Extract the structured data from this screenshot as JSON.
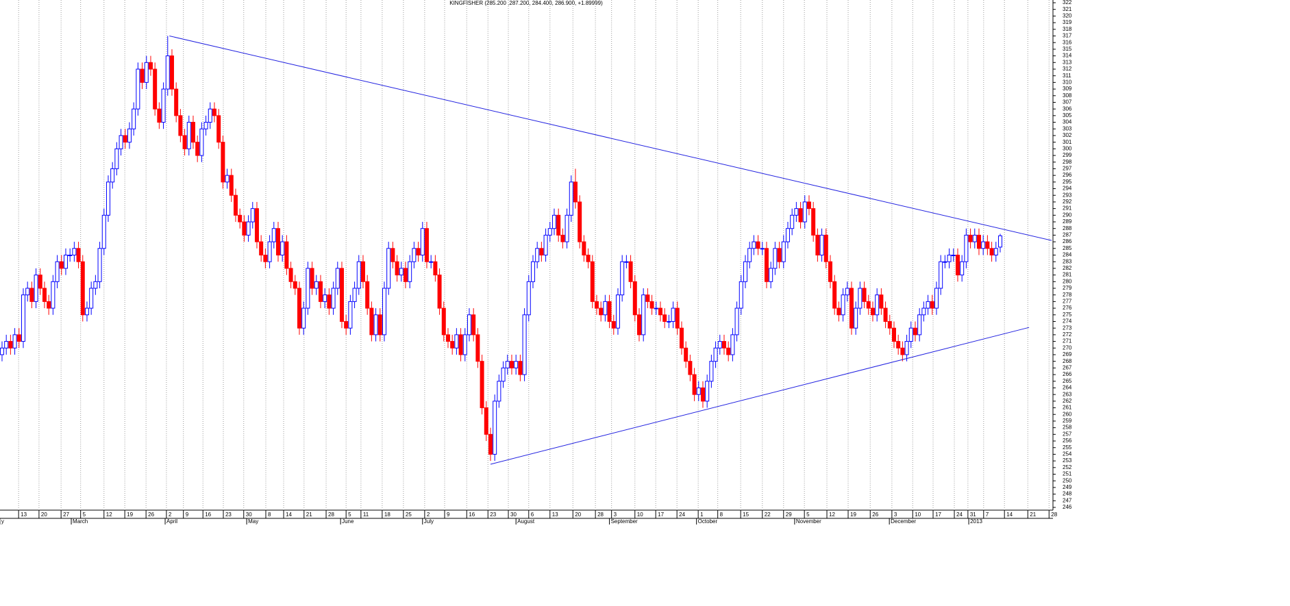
{
  "chart_data": {
    "type": "candlestick",
    "title": "KINGFISHER (285.200 ,287.200, 284.400, 286.900, +1.89999)",
    "up_color": "#0000ff",
    "down_color": "#ff0000",
    "trend_color": "#2020e0",
    "grid": true,
    "xlim": [
      -0.48,
      247.1
    ],
    "ylim": [
      246,
      322
    ],
    "open": [
      269,
      270,
      271,
      270,
      272,
      271,
      278,
      279,
      277,
      281,
      279,
      277,
      276,
      280,
      283,
      282,
      284,
      284,
      285,
      283,
      275,
      276,
      279,
      280,
      285,
      290,
      295,
      297,
      300,
      302,
      301,
      303,
      306,
      312,
      310,
      313,
      312,
      306,
      304,
      309,
      314,
      309,
      305,
      302,
      300,
      304,
      301,
      299,
      303,
      304,
      306,
      305,
      301,
      295,
      296,
      293,
      290,
      289,
      287,
      289,
      291,
      286,
      284,
      283,
      286,
      288,
      284,
      286,
      282,
      280,
      279,
      273,
      276,
      282,
      279,
      280,
      277,
      278,
      276,
      279,
      282,
      274,
      273,
      277,
      279,
      283,
      280,
      276,
      272,
      275,
      272,
      279,
      285,
      283,
      281,
      282,
      280,
      283,
      285,
      284,
      288,
      283,
      283,
      281,
      276,
      272,
      271,
      270,
      272,
      269,
      272,
      275,
      272,
      268,
      261,
      257,
      254,
      262,
      265,
      267,
      268,
      267,
      268,
      266,
      275,
      280,
      283,
      285,
      284,
      287,
      288,
      290,
      287,
      286,
      290,
      295,
      292,
      286,
      284,
      283,
      277,
      276,
      275,
      277,
      274,
      273,
      278,
      283,
      283,
      280,
      275,
      272,
      278,
      277,
      276,
      276,
      275,
      274,
      274,
      276,
      273,
      270,
      268,
      266,
      263,
      264,
      262,
      265,
      268,
      270,
      271,
      270,
      269,
      272,
      276,
      280,
      283,
      285,
      286,
      285,
      285,
      280,
      282,
      285,
      283,
      286,
      288,
      290,
      291,
      289,
      292,
      291,
      287,
      284,
      287,
      283,
      280,
      276,
      275,
      278,
      279,
      273,
      276,
      279,
      277,
      276,
      275,
      278,
      276,
      274,
      273,
      271,
      270,
      269,
      271,
      273,
      272,
      275,
      276,
      277,
      276,
      279,
      283,
      283,
      284,
      284,
      281,
      283,
      287,
      286,
      287,
      285,
      286,
      285,
      284,
      285.2
    ],
    "high": [
      271,
      272,
      272,
      273,
      273,
      279,
      280,
      280,
      282,
      282,
      280,
      278,
      281,
      284,
      284,
      285,
      285,
      286,
      286,
      284,
      277,
      280,
      281,
      286,
      291,
      296,
      298,
      301,
      303,
      303,
      304,
      307,
      313,
      313,
      314,
      314,
      313,
      307,
      310,
      317,
      315,
      310,
      306,
      303,
      305,
      305,
      302,
      304,
      305,
      307,
      307,
      306,
      302,
      297,
      297,
      294,
      291,
      290,
      290,
      292,
      292,
      287,
      285,
      287,
      289,
      289,
      287,
      287,
      283,
      281,
      280,
      277,
      283,
      283,
      281,
      281,
      279,
      279,
      280,
      283,
      283,
      275,
      278,
      280,
      284,
      284,
      281,
      277,
      276,
      276,
      280,
      286,
      286,
      284,
      283,
      283,
      284,
      286,
      286,
      289,
      289,
      284,
      284,
      282,
      277,
      273,
      272,
      273,
      273,
      273,
      276,
      276,
      273,
      269,
      262,
      258,
      263,
      266,
      268,
      269,
      269,
      269,
      269,
      276,
      281,
      284,
      286,
      286,
      288,
      289,
      291,
      291,
      288,
      291,
      296,
      297,
      293,
      287,
      285,
      284,
      278,
      277,
      278,
      278,
      275,
      279,
      284,
      284,
      284,
      281,
      276,
      279,
      279,
      278,
      277,
      277,
      276,
      275,
      277,
      277,
      274,
      271,
      269,
      267,
      265,
      265,
      266,
      269,
      271,
      272,
      272,
      271,
      273,
      277,
      281,
      284,
      286,
      287,
      287,
      286,
      286,
      283,
      286,
      286,
      287,
      289,
      291,
      292,
      292,
      293,
      293,
      292,
      288,
      288,
      288,
      284,
      281,
      277,
      279,
      280,
      280,
      277,
      280,
      280,
      278,
      277,
      279,
      279,
      277,
      275,
      274,
      272,
      271,
      272,
      274,
      274,
      276,
      277,
      278,
      278,
      280,
      284,
      284,
      285,
      285,
      285,
      284,
      288,
      288,
      288,
      288,
      287,
      287,
      286,
      286,
      287.2
    ],
    "low": [
      268,
      269,
      269,
      269,
      270,
      270,
      277,
      276,
      276,
      278,
      276,
      275,
      275,
      279,
      281,
      281,
      283,
      283,
      282,
      274,
      274,
      275,
      278,
      279,
      284,
      289,
      294,
      296,
      299,
      300,
      300,
      302,
      305,
      309,
      309,
      311,
      305,
      303,
      303,
      308,
      308,
      304,
      301,
      299,
      299,
      300,
      298,
      298,
      302,
      303,
      304,
      300,
      294,
      294,
      292,
      289,
      288,
      286,
      286,
      288,
      285,
      283,
      282,
      282,
      285,
      283,
      283,
      281,
      279,
      278,
      272,
      272,
      275,
      278,
      278,
      276,
      276,
      275,
      275,
      278,
      273,
      272,
      272,
      276,
      278,
      279,
      275,
      271,
      271,
      271,
      271,
      278,
      282,
      280,
      280,
      279,
      279,
      282,
      283,
      283,
      282,
      282,
      280,
      275,
      271,
      270,
      269,
      269,
      268,
      268,
      271,
      271,
      267,
      260,
      256,
      253,
      253,
      261,
      264,
      266,
      266,
      266,
      265,
      265,
      274,
      279,
      282,
      283,
      283,
      286,
      287,
      286,
      285,
      285,
      289,
      291,
      285,
      283,
      282,
      276,
      275,
      274,
      274,
      273,
      272,
      272,
      277,
      282,
      279,
      274,
      271,
      271,
      276,
      275,
      275,
      274,
      273,
      273,
      273,
      272,
      269,
      267,
      265,
      262,
      262,
      261,
      261,
      264,
      267,
      269,
      269,
      268,
      268,
      271,
      275,
      279,
      282,
      284,
      284,
      284,
      279,
      279,
      281,
      282,
      282,
      285,
      287,
      289,
      288,
      288,
      290,
      286,
      283,
      283,
      282,
      279,
      275,
      274,
      274,
      277,
      272,
      272,
      275,
      276,
      275,
      274,
      274,
      275,
      273,
      272,
      270,
      269,
      268,
      268,
      270,
      271,
      271,
      274,
      275,
      275,
      275,
      278,
      282,
      282,
      283,
      280,
      280,
      282,
      285,
      285,
      284,
      284,
      284,
      283,
      283,
      284.4
    ],
    "close": [
      270,
      271,
      270,
      272,
      271,
      278,
      279,
      277,
      281,
      279,
      277,
      276,
      280,
      283,
      282,
      284,
      284,
      285,
      283,
      275,
      276,
      279,
      280,
      285,
      290,
      295,
      297,
      300,
      302,
      301,
      303,
      306,
      312,
      310,
      313,
      312,
      306,
      304,
      309,
      314,
      309,
      305,
      302,
      300,
      304,
      301,
      299,
      303,
      304,
      306,
      305,
      301,
      295,
      296,
      293,
      290,
      289,
      287,
      289,
      291,
      286,
      284,
      283,
      286,
      288,
      284,
      286,
      282,
      280,
      279,
      273,
      276,
      282,
      279,
      280,
      277,
      278,
      276,
      279,
      282,
      274,
      273,
      277,
      279,
      283,
      280,
      276,
      272,
      275,
      272,
      279,
      285,
      283,
      281,
      282,
      280,
      283,
      285,
      284,
      288,
      283,
      283,
      281,
      276,
      272,
      271,
      270,
      272,
      269,
      272,
      275,
      272,
      268,
      261,
      257,
      254,
      262,
      265,
      267,
      268,
      267,
      268,
      266,
      275,
      280,
      283,
      285,
      284,
      287,
      288,
      290,
      287,
      286,
      290,
      295,
      292,
      286,
      284,
      283,
      277,
      276,
      275,
      277,
      274,
      273,
      278,
      283,
      283,
      280,
      275,
      272,
      278,
      277,
      276,
      276,
      275,
      274,
      274,
      276,
      273,
      270,
      268,
      266,
      263,
      264,
      262,
      265,
      268,
      270,
      271,
      270,
      269,
      272,
      276,
      280,
      283,
      285,
      286,
      285,
      285,
      280,
      282,
      285,
      283,
      286,
      288,
      290,
      291,
      289,
      292,
      291,
      287,
      284,
      287,
      283,
      280,
      276,
      275,
      278,
      279,
      273,
      276,
      279,
      277,
      276,
      275,
      278,
      276,
      274,
      273,
      271,
      270,
      269,
      271,
      273,
      272,
      275,
      276,
      277,
      276,
      279,
      283,
      283,
      284,
      284,
      281,
      283,
      287,
      286,
      287,
      285,
      286,
      285,
      284,
      285,
      286.9
    ],
    "trendlines": [
      {
        "x": [
          39.4,
          247.1
        ],
        "y": [
          317,
          286.2
        ]
      },
      {
        "x": [
          115,
          241.8
        ],
        "y": [
          252.5,
          273.1
        ]
      }
    ],
    "yticks": [
      246,
      247,
      248,
      249,
      250,
      251,
      252,
      253,
      254,
      255,
      256,
      257,
      258,
      259,
      260,
      261,
      262,
      263,
      264,
      265,
      266,
      267,
      268,
      269,
      270,
      271,
      272,
      273,
      274,
      275,
      276,
      277,
      278,
      279,
      280,
      281,
      282,
      283,
      284,
      285,
      286,
      287,
      288,
      289,
      290,
      291,
      292,
      293,
      294,
      295,
      296,
      297,
      298,
      299,
      300,
      301,
      302,
      303,
      304,
      305,
      306,
      307,
      308,
      309,
      310,
      311,
      312,
      313,
      314,
      315,
      316,
      317,
      318,
      319,
      320,
      321,
      322
    ],
    "xticks": [
      {
        "value": 3.9,
        "label": "13"
      },
      {
        "value": 8.7,
        "label": "20"
      },
      {
        "value": 13.9,
        "label": "27"
      },
      {
        "value": 18.5,
        "label": "5"
      },
      {
        "value": 24,
        "label": "12"
      },
      {
        "value": 28.9,
        "label": "19"
      },
      {
        "value": 33.9,
        "label": "26"
      },
      {
        "value": 38.7,
        "label": "2"
      },
      {
        "value": 42.7,
        "label": "9"
      },
      {
        "value": 47.3,
        "label": "16"
      },
      {
        "value": 52.1,
        "label": "23"
      },
      {
        "value": 56.9,
        "label": "30"
      },
      {
        "value": 62.1,
        "label": "8"
      },
      {
        "value": 66.3,
        "label": "14"
      },
      {
        "value": 71.1,
        "label": "21"
      },
      {
        "value": 76.3,
        "label": "28"
      },
      {
        "value": 81,
        "label": "5"
      },
      {
        "value": 84.5,
        "label": "11"
      },
      {
        "value": 89.5,
        "label": "18"
      },
      {
        "value": 94.5,
        "label": "25"
      },
      {
        "value": 99.5,
        "label": "2"
      },
      {
        "value": 104.2,
        "label": "9"
      },
      {
        "value": 109.4,
        "label": "16"
      },
      {
        "value": 114.4,
        "label": "23"
      },
      {
        "value": 119.2,
        "label": "30"
      },
      {
        "value": 124,
        "label": "6"
      },
      {
        "value": 129,
        "label": "13"
      },
      {
        "value": 134.4,
        "label": "20"
      },
      {
        "value": 139.7,
        "label": "28"
      },
      {
        "value": 143.5,
        "label": "3"
      },
      {
        "value": 149,
        "label": "10"
      },
      {
        "value": 153.9,
        "label": "17"
      },
      {
        "value": 158.9,
        "label": "24"
      },
      {
        "value": 163.9,
        "label": "1"
      },
      {
        "value": 168.5,
        "label": "8"
      },
      {
        "value": 173.9,
        "label": "15"
      },
      {
        "value": 179,
        "label": "22"
      },
      {
        "value": 184,
        "label": "29"
      },
      {
        "value": 188.9,
        "label": "5"
      },
      {
        "value": 194.2,
        "label": "12"
      },
      {
        "value": 199.2,
        "label": "19"
      },
      {
        "value": 204.4,
        "label": "26"
      },
      {
        "value": 209.5,
        "label": "3"
      },
      {
        "value": 214.4,
        "label": "10"
      },
      {
        "value": 219.2,
        "label": "17"
      },
      {
        "value": 224.2,
        "label": "24"
      },
      {
        "value": 227.4,
        "label": "31"
      },
      {
        "value": 231.1,
        "label": "7"
      },
      {
        "value": 236,
        "label": "14"
      },
      {
        "value": 241.5,
        "label": "21"
      },
      {
        "value": 246.5,
        "label": "28"
      }
    ],
    "months": [
      {
        "value": -0.5,
        "label": "y"
      },
      {
        "value": 16.3,
        "label": "March"
      },
      {
        "value": 38.4,
        "label": "April"
      },
      {
        "value": 57.6,
        "label": "May"
      },
      {
        "value": 79.7,
        "label": "June"
      },
      {
        "value": 99,
        "label": "July"
      },
      {
        "value": 121,
        "label": "August"
      },
      {
        "value": 143,
        "label": "September"
      },
      {
        "value": 163.5,
        "label": "October"
      },
      {
        "value": 186.6,
        "label": "November"
      },
      {
        "value": 208.9,
        "label": "December"
      },
      {
        "value": 227.6,
        "label": "2013"
      }
    ]
  }
}
